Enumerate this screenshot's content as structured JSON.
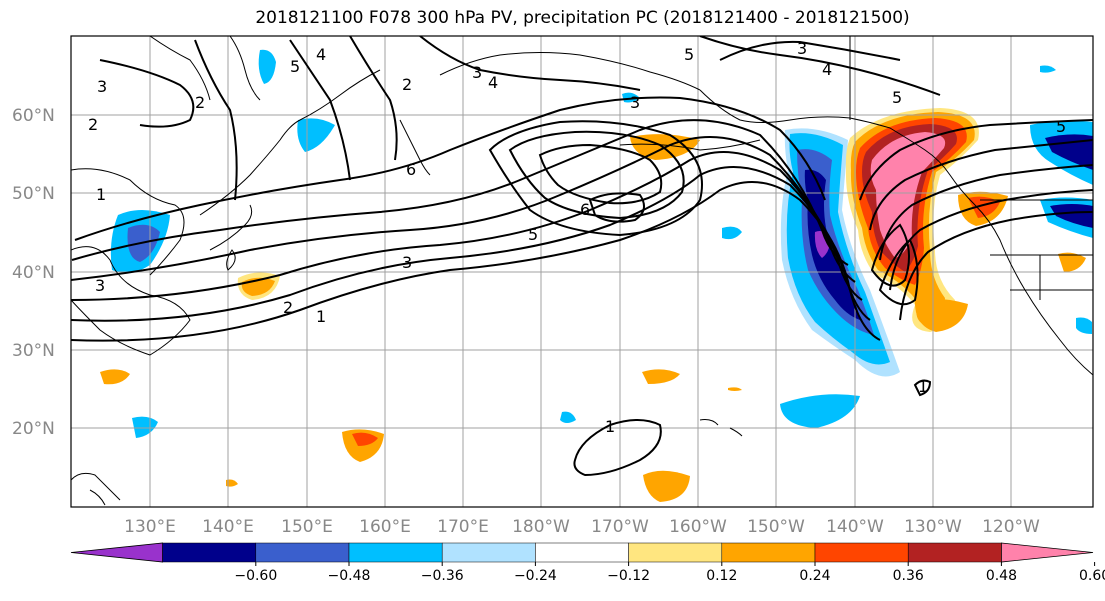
{
  "title": "2018121100 F078 300 hPa PV, precipitation PC (2018121400 - 2018121500)",
  "map": {
    "lat_ticks": [
      "60°N",
      "50°N",
      "40°N",
      "30°N",
      "20°N"
    ],
    "lon_ticks": [
      "130°E",
      "140°E",
      "150°E",
      "160°E",
      "170°E",
      "180°W",
      "170°W",
      "160°W",
      "150°W",
      "140°W",
      "130°W",
      "120°W"
    ],
    "contour_labels": [
      "1",
      "2",
      "3",
      "4",
      "5",
      "6"
    ]
  },
  "colorbar": {
    "levels": [
      "−0.60",
      "−0.48",
      "−0.36",
      "−0.24",
      "−0.12",
      "0.12",
      "0.24",
      "0.36",
      "0.48",
      "0.60"
    ],
    "colors": [
      "#9932cc",
      "#00008b",
      "#3a5fcd",
      "#00bfff",
      "#b0e2ff",
      "#ffffff",
      "#ffe680",
      "#ffa500",
      "#ff4500",
      "#b22222",
      "#ff82ab"
    ]
  },
  "colors": {
    "purple": "#9932cc",
    "navy": "#00008b",
    "royal": "#3a5fcd",
    "sky": "#00bfff",
    "pale_blue": "#b0e2ff",
    "pale_yellow": "#ffe680",
    "orange": "#ffa500",
    "red_orange": "#ff4500",
    "firebrick": "#b22222",
    "pink": "#ff82ab"
  }
}
